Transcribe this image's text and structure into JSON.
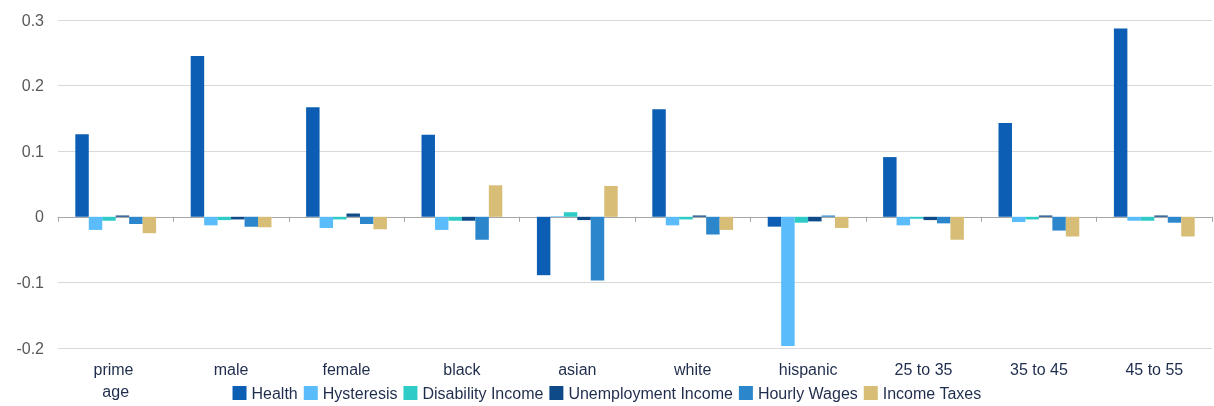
{
  "chart_data": {
    "type": "bar",
    "categories": [
      "prime age",
      "male",
      "female",
      "black",
      "asian",
      "white",
      "hispanic",
      "25 to 35",
      "35 to 45",
      "45 to 55"
    ],
    "series": [
      {
        "name": "Health",
        "color": "#0b5eb3",
        "values": [
          0.126,
          0.245,
          0.167,
          0.125,
          -0.089,
          0.164,
          -0.015,
          0.091,
          0.143,
          0.287
        ]
      },
      {
        "name": "Hysteresis",
        "color": "#5bbcfb",
        "values": [
          -0.02,
          -0.013,
          -0.017,
          -0.02,
          0.001,
          -0.013,
          -0.197,
          -0.013,
          -0.008,
          -0.006
        ]
      },
      {
        "name": "Disability Income",
        "color": "#2ecbc7",
        "values": [
          -0.006,
          -0.005,
          -0.004,
          -0.006,
          0.007,
          -0.004,
          -0.009,
          -0.003,
          -0.004,
          -0.006
        ]
      },
      {
        "name": "Unemployment Income",
        "color": "#0d4a87",
        "values": [
          0.002,
          -0.004,
          0.005,
          -0.006,
          -0.005,
          0.002,
          -0.007,
          -0.005,
          0.002,
          0.002
        ]
      },
      {
        "name": "Hourly Wages",
        "color": "#2b86cc",
        "values": [
          -0.011,
          -0.015,
          -0.011,
          -0.035,
          -0.097,
          -0.027,
          0.002,
          -0.01,
          -0.021,
          -0.009
        ]
      },
      {
        "name": "Income Taxes",
        "color": "#d7bd76",
        "values": [
          -0.025,
          -0.016,
          -0.019,
          0.048,
          0.047,
          -0.02,
          -0.017,
          -0.035,
          -0.03,
          -0.03
        ]
      }
    ],
    "ylim": [
      -0.2,
      0.3
    ],
    "yticks": [
      -0.2,
      -0.1,
      0,
      0.1,
      0.2,
      0.3
    ],
    "grid": "y",
    "legend": "bottom"
  }
}
